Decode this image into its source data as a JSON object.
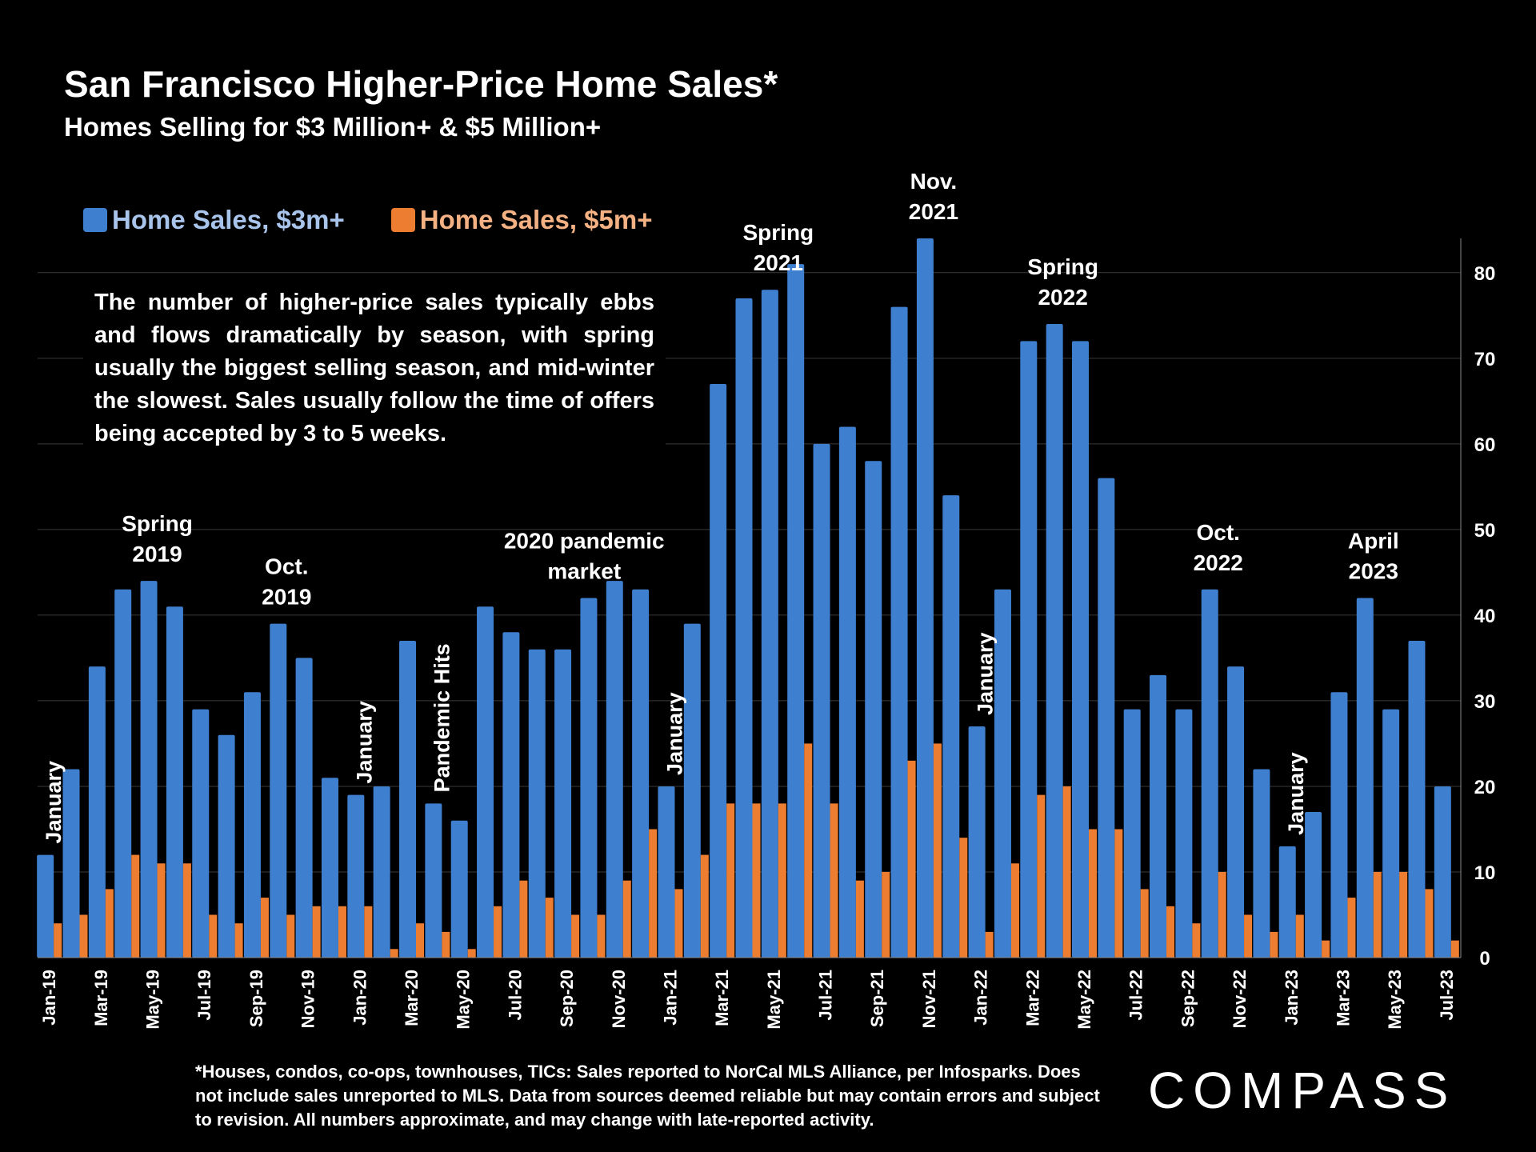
{
  "header": {
    "title": "San Francisco Higher-Price Home Sales*",
    "subtitle": "Homes Selling for $3 Million+ & $5 Million+"
  },
  "legend": [
    {
      "label": "Home Sales, $3m+",
      "color": "#3F7FCF",
      "text_color": "#A9C4EB"
    },
    {
      "label": "Home Sales, $5m+",
      "color": "#ED7D31",
      "text_color": "#F4B183"
    }
  ],
  "note": "The number of higher-price sales typically ebbs and flows dramatically by season, with spring usually the biggest selling season, and mid-winter the slowest. Sales usually follow the time of offers being accepted by 3 to 5 weeks.",
  "footnote": "*Houses, condos, co-ops, townhouses, TICs:  Sales reported to NorCal MLS Alliance, per Infosparks. Does not include sales unreported to MLS. Data from sources deemed reliable but may contain errors and subject to revision.  All numbers approximate, and may change with late-reported activity.",
  "logo": "COMPASS",
  "chart_data": {
    "type": "bar",
    "categories": [
      "Jan-19",
      "Feb-19",
      "Mar-19",
      "Apr-19",
      "May-19",
      "Jun-19",
      "Jul-19",
      "Aug-19",
      "Sep-19",
      "Oct-19",
      "Nov-19",
      "Dec-19",
      "Jan-20",
      "Feb-20",
      "Mar-20",
      "Apr-20",
      "May-20",
      "Jun-20",
      "Jul-20",
      "Aug-20",
      "Sep-20",
      "Oct-20",
      "Nov-20",
      "Dec-20",
      "Jan-21",
      "Feb-21",
      "Mar-21",
      "Apr-21",
      "May-21",
      "Jun-21",
      "Jul-21",
      "Aug-21",
      "Sep-21",
      "Oct-21",
      "Nov-21",
      "Dec-21",
      "Jan-22",
      "Feb-22",
      "Mar-22",
      "Apr-22",
      "May-22",
      "Jun-22",
      "Jul-22",
      "Aug-22",
      "Sep-22",
      "Oct-22",
      "Nov-22",
      "Dec-22",
      "Jan-23",
      "Feb-23",
      "Mar-23",
      "Apr-23",
      "May-23",
      "Jun-23",
      "Jul-23"
    ],
    "tick_labels": [
      "Jan-19",
      "",
      "Mar-19",
      "",
      "May-19",
      "",
      "Jul-19",
      "",
      "Sep-19",
      "",
      "Nov-19",
      "",
      "Jan-20",
      "",
      "Mar-20",
      "",
      "May-20",
      "",
      "Jul-20",
      "",
      "Sep-20",
      "",
      "Nov-20",
      "",
      "Jan-21",
      "",
      "Mar-21",
      "",
      "May-21",
      "",
      "Jul-21",
      "",
      "Sep-21",
      "",
      "Nov-21",
      "",
      "Jan-22",
      "",
      "Mar-22",
      "",
      "May-22",
      "",
      "Jul-22",
      "",
      "Sep-22",
      "",
      "Nov-22",
      "",
      "Jan-23",
      "",
      "Mar-23",
      "",
      "May-23",
      "",
      "Jul-23"
    ],
    "series": [
      {
        "name": "Home Sales, $3m+",
        "color": "#3F7FCF",
        "values": [
          12,
          22,
          34,
          43,
          44,
          41,
          29,
          26,
          31,
          39,
          35,
          21,
          19,
          20,
          37,
          18,
          16,
          41,
          38,
          36,
          36,
          42,
          44,
          43,
          20,
          39,
          67,
          77,
          78,
          81,
          60,
          62,
          58,
          76,
          84,
          54,
          27,
          43,
          72,
          74,
          72,
          56,
          29,
          33,
          29,
          43,
          34,
          22,
          13,
          17,
          31,
          42,
          29,
          37,
          20
        ]
      },
      {
        "name": "Home Sales, $5m+",
        "color": "#ED7D31",
        "values": [
          4,
          5,
          8,
          12,
          11,
          11,
          5,
          4,
          7,
          5,
          6,
          6,
          6,
          1,
          4,
          3,
          1,
          6,
          9,
          7,
          5,
          5,
          9,
          15,
          8,
          12,
          18,
          18,
          18,
          25,
          18,
          9,
          10,
          23,
          25,
          14,
          3,
          11,
          19,
          20,
          15,
          15,
          8,
          6,
          4,
          10,
          5,
          3,
          5,
          2,
          7,
          10,
          10,
          8,
          2
        ]
      }
    ],
    "y_axis": {
      "position": "right",
      "ylim": [
        0,
        84
      ],
      "ticks": [
        0,
        10,
        20,
        30,
        40,
        50,
        60,
        70,
        80
      ]
    },
    "grid": true,
    "annotations": [
      {
        "text": "January",
        "index": 0,
        "rotated": true
      },
      {
        "text": "Spring 2019",
        "index": 4,
        "rotated": false
      },
      {
        "text": "Oct. 2019",
        "index": 9,
        "rotated": false
      },
      {
        "text": "January",
        "index": 12,
        "rotated": true
      },
      {
        "text": "Pandemic Hits",
        "index": 15,
        "rotated": true
      },
      {
        "text": "2020 pandemic market",
        "index": 20.5,
        "rotated": false
      },
      {
        "text": "January",
        "index": 24,
        "rotated": true
      },
      {
        "text": "Spring 2021",
        "index": 28,
        "rotated": false
      },
      {
        "text": "Nov. 2021",
        "index": 34,
        "rotated": false
      },
      {
        "text": "January",
        "index": 36,
        "rotated": true
      },
      {
        "text": "Spring 2022",
        "index": 39,
        "rotated": false
      },
      {
        "text": "Oct. 2022",
        "index": 45,
        "rotated": false
      },
      {
        "text": "January",
        "index": 48,
        "rotated": true
      },
      {
        "text": "April 2023",
        "index": 51,
        "rotated": false
      }
    ]
  }
}
